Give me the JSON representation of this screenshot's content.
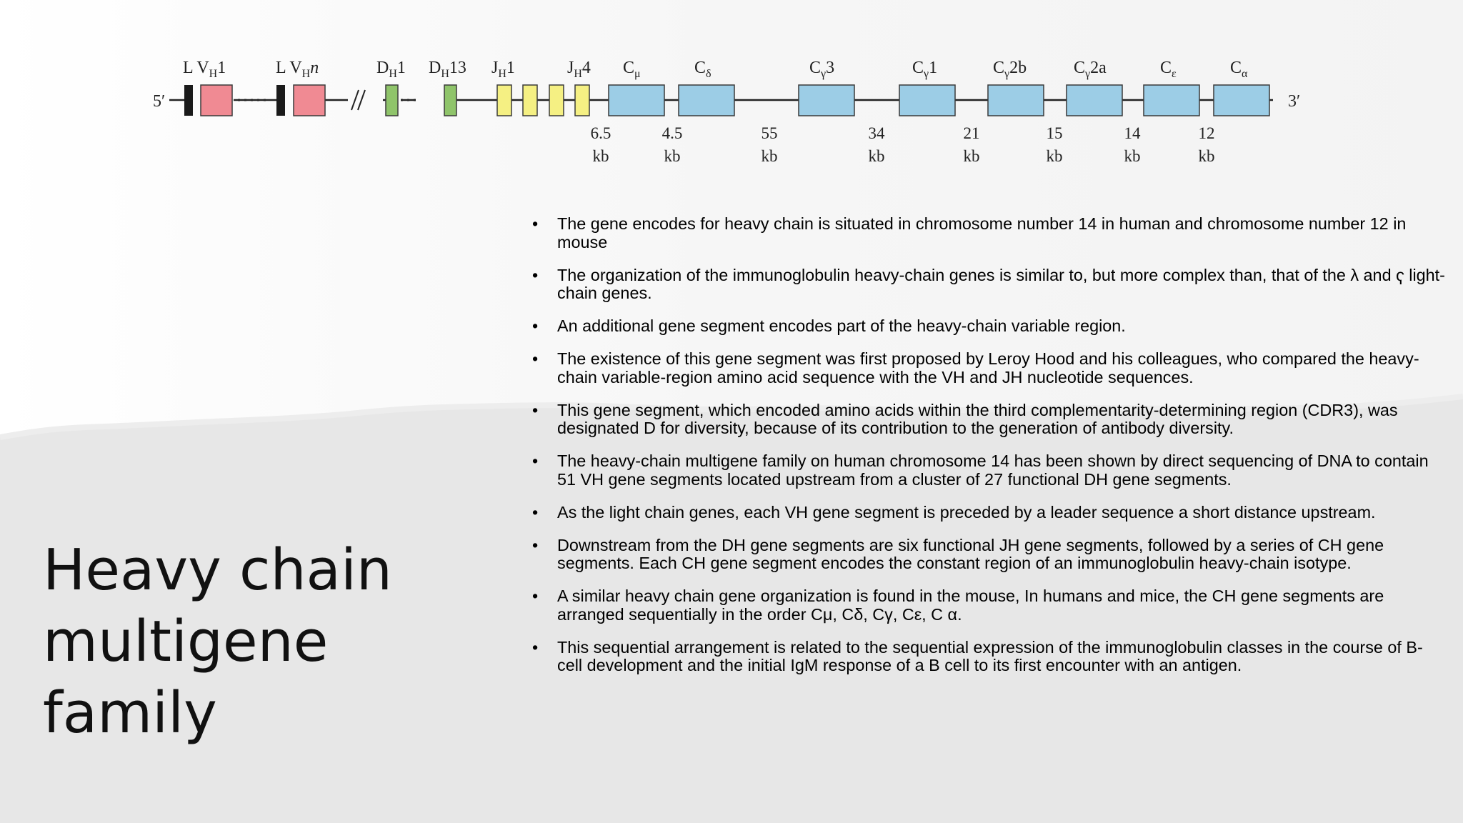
{
  "slide": {
    "title_lines": [
      "Heavy chain",
      "multigene family"
    ]
  },
  "diagram": {
    "end_labels": {
      "five_prime": "5′",
      "three_prime": "3′"
    },
    "segments": [
      {
        "main": "L V",
        "sub": "H",
        "after": "1",
        "italic_after": false
      },
      {
        "main": "L V",
        "sub": "H",
        "after": "n",
        "italic_after": true
      },
      {
        "main": "D",
        "sub": "H",
        "after": "1",
        "italic_after": false
      },
      {
        "main": "D",
        "sub": "H",
        "after": "13",
        "italic_after": false
      },
      {
        "main": "J",
        "sub": "H",
        "after": "1",
        "italic_after": false
      },
      {
        "main": "J",
        "sub": "H",
        "after": "4",
        "italic_after": false
      },
      {
        "main": "C",
        "sub": "μ",
        "after": "",
        "italic_after": false
      },
      {
        "main": "C",
        "sub": "δ",
        "after": "",
        "italic_after": false
      },
      {
        "main": "C",
        "sub": "γ",
        "after": "3",
        "italic_after": false
      },
      {
        "main": "C",
        "sub": "γ",
        "after": "1",
        "italic_after": false
      },
      {
        "main": "C",
        "sub": "γ",
        "after": "2b",
        "italic_after": false
      },
      {
        "main": "C",
        "sub": "γ",
        "after": "2a",
        "italic_after": false
      },
      {
        "main": "C",
        "sub": "ε",
        "after": "",
        "italic_after": false
      },
      {
        "main": "C",
        "sub": "α",
        "after": "",
        "italic_after": false
      }
    ],
    "distances": [
      {
        "value": "6.5",
        "unit": "kb"
      },
      {
        "value": "4.5",
        "unit": "kb"
      },
      {
        "value": "55",
        "unit": "kb"
      },
      {
        "value": "34",
        "unit": "kb"
      },
      {
        "value": "21",
        "unit": "kb"
      },
      {
        "value": "15",
        "unit": "kb"
      },
      {
        "value": "14",
        "unit": "kb"
      },
      {
        "value": "12",
        "unit": "kb"
      }
    ],
    "colors": {
      "leader": "#1a1a1a",
      "v_segment": "#f08a93",
      "d_segment": "#8fc46a",
      "j_segment": "#f5f083",
      "c_segment": "#9ccde6",
      "line": "#222222"
    }
  },
  "bullets": [
    "The gene encodes for heavy chain is situated in chromosome number 14 in human and chromosome number 12 in mouse",
    "The organization of the immunoglobulin heavy-chain genes is similar to, but more complex than, that of the λ and ҁ light-chain genes.",
    "An additional gene segment encodes part of the heavy-chain variable region.",
    "The existence of this gene segment was first proposed by Leroy Hood and his colleagues, who compared the heavy-chain variable-region amino acid sequence with the VH and JH nucleotide sequences.",
    "This gene segment, which encoded amino acids within the third complementarity-determining region (CDR3), was designated D for diversity, because of its contribution to the generation of antibody diversity.",
    "The heavy-chain multigene family on human chromosome 14 has been shown by direct sequencing of DNA to contain 51 VH gene segments located upstream from a cluster of 27 functional DH gene segments.",
    "As the light chain genes, each VH gene segment is preceded by a leader sequence a short distance upstream.",
    "Downstream from the DH gene segments are six functional JH gene segments, followed by a series of CH gene segments. Each CH gene segment encodes the constant region of an immunoglobulin heavy-chain isotype.",
    "A similar heavy chain gene organization is found in the mouse, In humans and mice, the CH gene segments are arranged sequentially in the order Cμ, Cδ, Cγ, Cε, C α.",
    "This sequential arrangement is related to the sequential expression of the immunoglobulin classes in the course of B-cell development and the initial IgM response of a B cell to its first encounter with an antigen."
  ]
}
